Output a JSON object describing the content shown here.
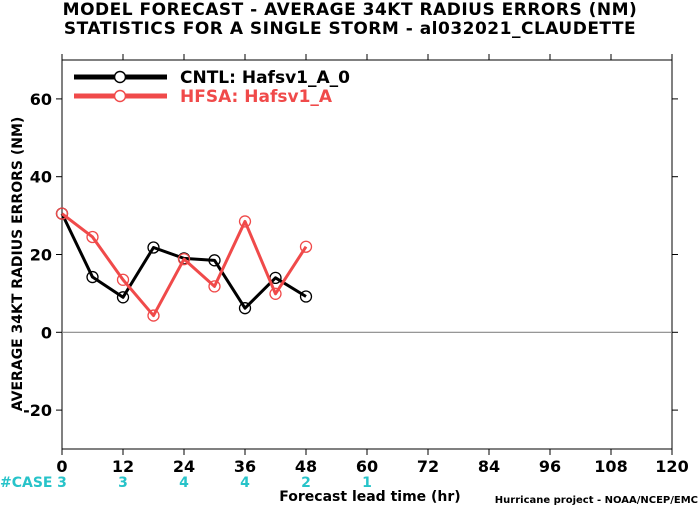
{
  "header": {
    "title_line1": "MODEL FORECAST - AVERAGE 34KT RADIUS ERRORS (NM)",
    "title_line2": "STATISTICS FOR A SINGLE STORM - al032021_CLAUDETTE"
  },
  "footer": {
    "case_label": "#CASE",
    "credit": "Hurricane project - NOAA/NCEP/EMC"
  },
  "colors": {
    "cntl": "#000000",
    "hfsa": "#f04a4a",
    "case": "#27c3c9",
    "zero_line": "#888888"
  },
  "chart_data": {
    "type": "line",
    "xlabel": "Forecast lead time (hr)",
    "ylabel": "AVERAGE 34KT RADIUS ERRORS (NM)",
    "xlim": [
      0,
      120
    ],
    "ylim": [
      -30,
      70
    ],
    "xticks": [
      0,
      12,
      24,
      36,
      48,
      60,
      72,
      84,
      96,
      108,
      120
    ],
    "yticks": [
      -20,
      0,
      20,
      40,
      60
    ],
    "grid": false,
    "legend_position": "top-left",
    "series": [
      {
        "name": "CNTL: Hafsv1_A_0",
        "color": "#000000",
        "x": [
          0,
          6,
          12,
          18,
          24,
          30,
          36,
          42,
          48
        ],
        "y": [
          30.5,
          14.2,
          9.0,
          21.8,
          19.0,
          18.5,
          6.2,
          14.0,
          9.2
        ]
      },
      {
        "name": "HFSA: Hafsv1_A",
        "color": "#f04a4a",
        "x": [
          0,
          6,
          12,
          18,
          24,
          30,
          36,
          42,
          48
        ],
        "y": [
          30.5,
          24.5,
          13.5,
          4.3,
          18.8,
          11.8,
          28.5,
          9.9,
          22.0
        ]
      }
    ],
    "cases": [
      {
        "x": 0,
        "n": "3"
      },
      {
        "x": 12,
        "n": "3"
      },
      {
        "x": 24,
        "n": "4"
      },
      {
        "x": 36,
        "n": "4"
      },
      {
        "x": 48,
        "n": "2"
      },
      {
        "x": 60,
        "n": "1"
      }
    ]
  }
}
